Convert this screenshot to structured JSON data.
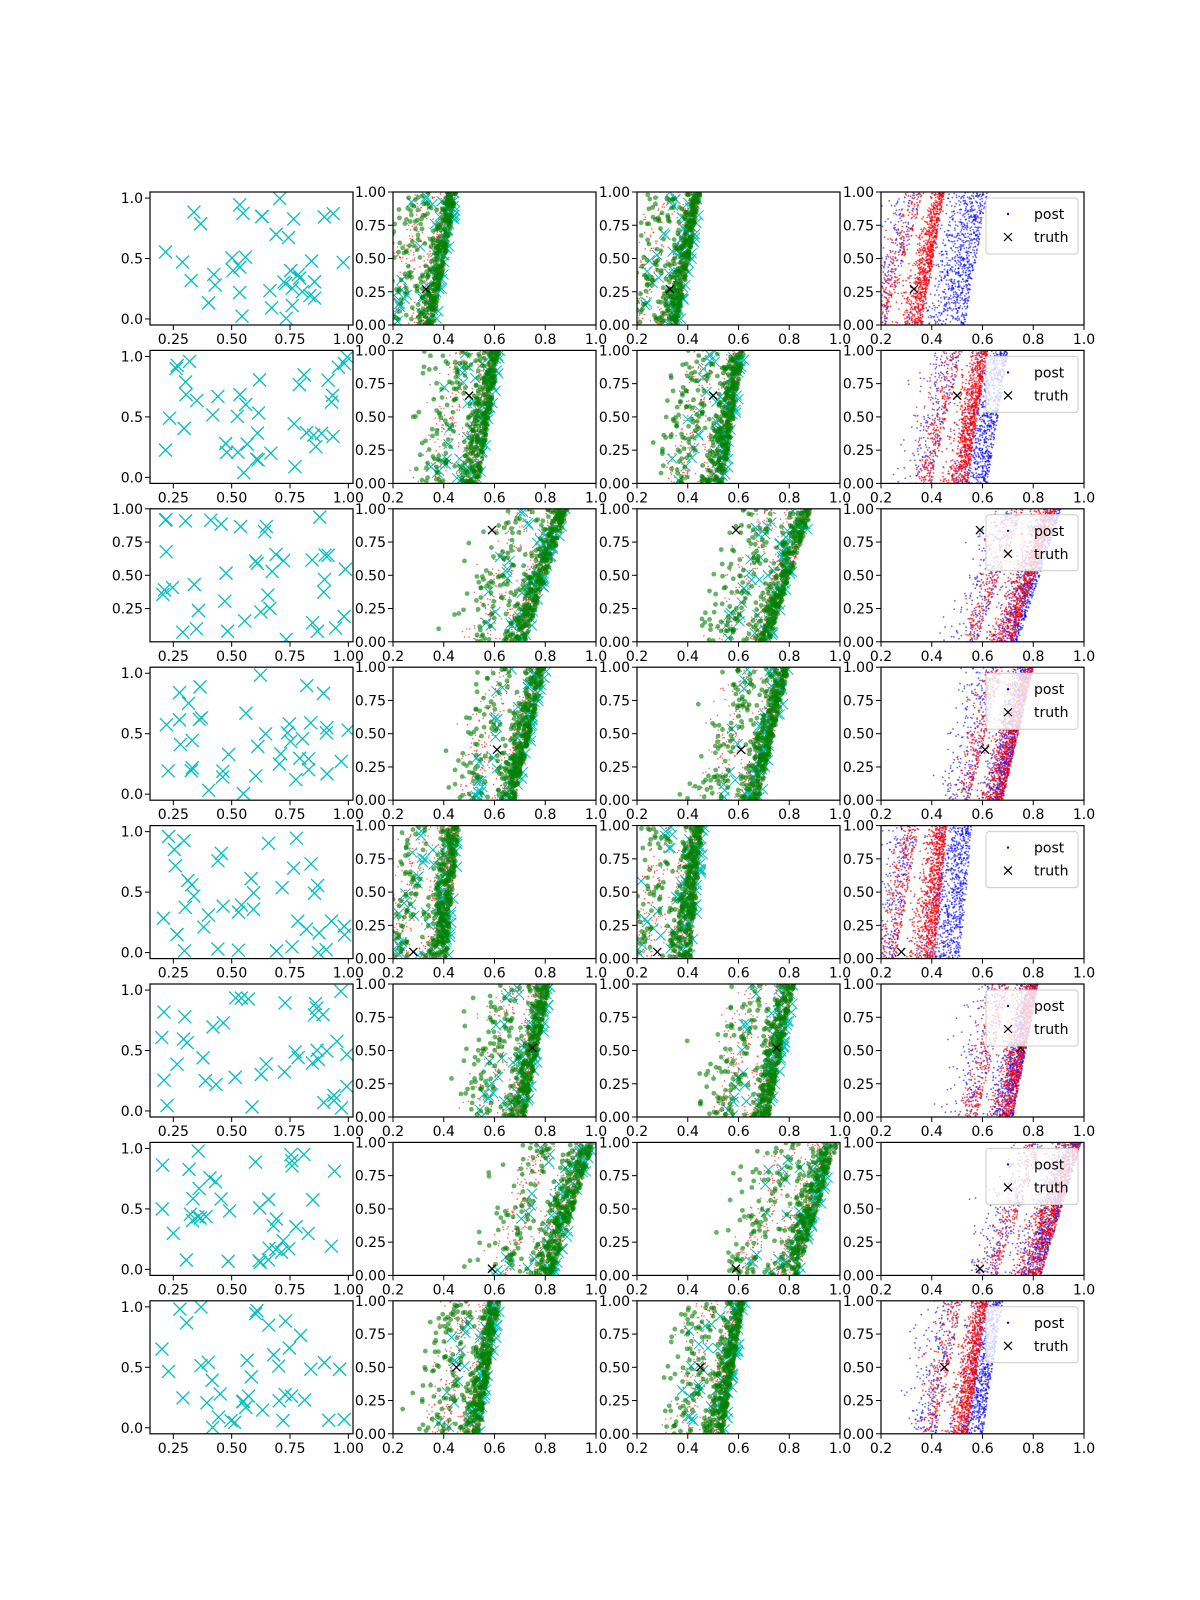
{
  "chart_data": {
    "type": "scatter",
    "layout": {
      "rows": 8,
      "cols": 4
    },
    "colors": {
      "obs": "#00bfbf",
      "green": "#008000",
      "red": "#ff0000",
      "blue": "#0000ff",
      "truth": "#000000",
      "axis": "#000000",
      "legend_border": "#cccccc"
    },
    "legend": {
      "entries": [
        "post",
        "truth"
      ],
      "placement": "upper-right",
      "column": 4
    },
    "column_axes": {
      "obs": {
        "xlim": [
          0.15,
          1.02
        ],
        "xticks": [
          "0.25",
          "0.50",
          "0.75",
          "1.00"
        ]
      },
      "posterior": {
        "xlim": [
          0.2,
          1.0
        ],
        "xticks": [
          "0.2",
          "0.4",
          "0.6",
          "0.8",
          "1.0"
        ]
      }
    },
    "posterior_yticks": [
      "0.00",
      "0.25",
      "0.50",
      "0.75",
      "1.00"
    ],
    "rows": [
      {
        "truth": [
          0.33,
          0.27
        ],
        "obs_ylim": [
          -0.05,
          1.05
        ],
        "obs_yticks": [
          "0.0",
          "0.5",
          "1.0"
        ],
        "band_left": [
          0.22,
          0.37
        ],
        "band_right": [
          0.36,
          0.45
        ],
        "blue_extra": 0.17
      },
      {
        "truth": [
          0.5,
          0.66
        ],
        "obs_ylim": [
          -0.05,
          1.05
        ],
        "obs_yticks": [
          "0.0",
          "0.5",
          "1.0"
        ],
        "band_left": [
          0.4,
          0.52
        ],
        "band_right": [
          0.54,
          0.62
        ],
        "blue_extra": 0.08
      },
      {
        "truth": [
          0.59,
          0.84
        ],
        "obs_ylim": [
          0.0,
          1.0
        ],
        "obs_yticks": [
          "0.25",
          "0.50",
          "0.75",
          "1.00"
        ],
        "band_left": [
          0.58,
          0.76
        ],
        "band_right": [
          0.72,
          0.89
        ],
        "blue_extra": 0.02
      },
      {
        "truth": [
          0.61,
          0.38
        ],
        "obs_ylim": [
          -0.05,
          1.05
        ],
        "obs_yticks": [
          "0.0",
          "0.5",
          "1.0"
        ],
        "band_left": [
          0.55,
          0.68
        ],
        "band_right": [
          0.68,
          0.8
        ],
        "blue_extra": 0.0
      },
      {
        "truth": [
          0.28,
          0.05
        ],
        "obs_ylim": [
          -0.05,
          1.05
        ],
        "obs_yticks": [
          "0.0",
          "0.5",
          "1.0"
        ],
        "band_left": [
          0.26,
          0.35
        ],
        "band_right": [
          0.41,
          0.46
        ],
        "blue_extra": 0.1
      },
      {
        "truth": [
          0.75,
          0.52
        ],
        "obs_ylim": [
          -0.05,
          1.05
        ],
        "obs_yticks": [
          "0.0",
          "0.5",
          "1.0"
        ],
        "band_left": [
          0.58,
          0.71
        ],
        "band_right": [
          0.72,
          0.82
        ],
        "blue_extra": 0.0
      },
      {
        "truth": [
          0.59,
          0.05
        ],
        "obs_ylim": [
          -0.05,
          1.05
        ],
        "obs_yticks": [
          "0.0",
          "0.5",
          "1.0"
        ],
        "band_left": [
          0.66,
          0.84
        ],
        "band_right": [
          0.83,
          0.99
        ],
        "blue_extra": 0.0
      },
      {
        "truth": [
          0.45,
          0.5
        ],
        "obs_ylim": [
          -0.05,
          1.05
        ],
        "obs_yticks": [
          "0.0",
          "0.5",
          "1.0"
        ],
        "band_left": [
          0.42,
          0.52
        ],
        "band_right": [
          0.54,
          0.62
        ],
        "blue_extra": 0.06
      }
    ]
  }
}
